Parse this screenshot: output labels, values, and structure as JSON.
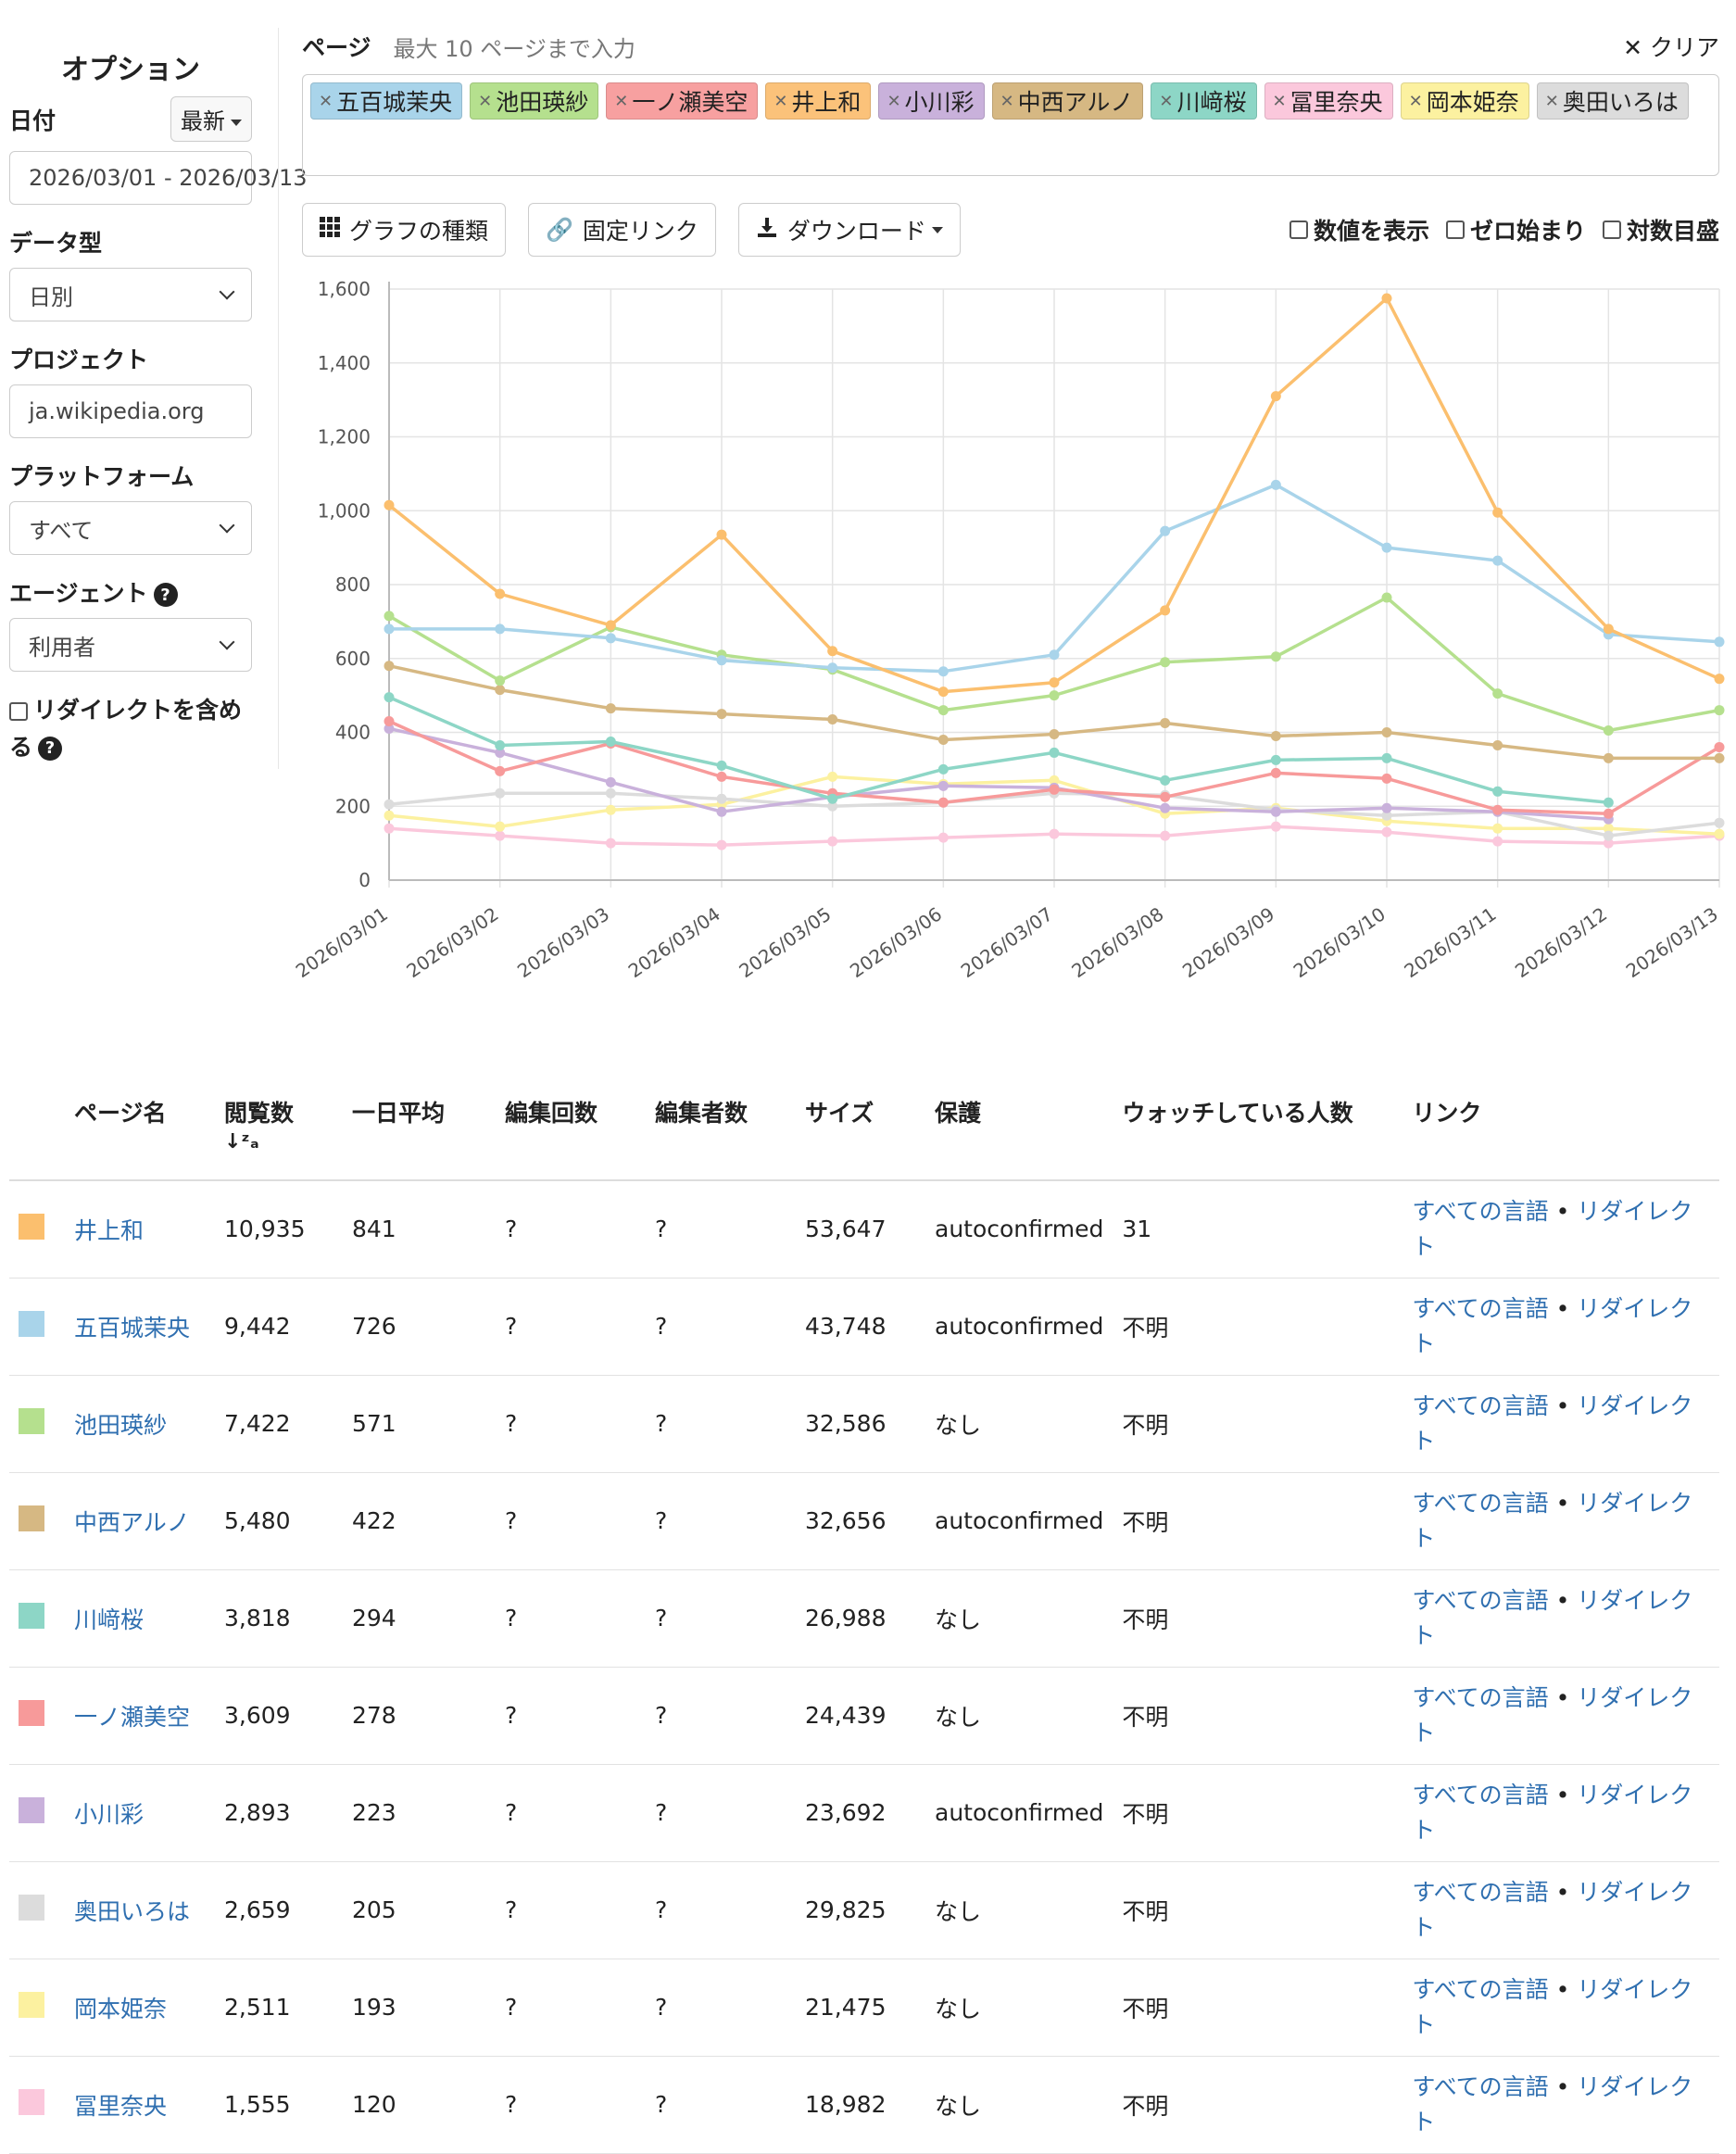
{
  "sidebar": {
    "title": "オプション",
    "date_label": "日付",
    "date_preset": "最新",
    "date_range": "2026/03/01 - 2026/03/13",
    "datatype_label": "データ型",
    "datatype_value": "日別",
    "project_label": "プロジェクト",
    "project_value": "ja.wikipedia.org",
    "platform_label": "プラットフォーム",
    "platform_value": "すべて",
    "agent_label": "エージェント",
    "agent_value": "利用者",
    "redirect_label": "リダイレクトを含める"
  },
  "pages": {
    "label": "ページ",
    "hint": "最大 10 ページまで入力",
    "clear": "クリア",
    "tags": [
      {
        "name": "五百城茉央",
        "color": "#a9d4ea"
      },
      {
        "name": "池田瑛紗",
        "color": "#b5e08e"
      },
      {
        "name": "一ノ瀬美空",
        "color": "#f7a0a0"
      },
      {
        "name": "井上和",
        "color": "#fbc27a"
      },
      {
        "name": "小川彩",
        "color": "#c9b1db"
      },
      {
        "name": "中西アルノ",
        "color": "#d6b883"
      },
      {
        "name": "川﨑桜",
        "color": "#8dd6c6"
      },
      {
        "name": "冨里奈央",
        "color": "#fbc8dc"
      },
      {
        "name": "岡本姫奈",
        "color": "#fcf1a0"
      },
      {
        "name": "奥田いろは",
        "color": "#dcdcdc"
      }
    ]
  },
  "toolbar": {
    "chart_type": "グラフの種類",
    "permalink": "固定リンク",
    "download": "ダウンロード",
    "show_values": "数値を表示",
    "begin_zero": "ゼロ始まり",
    "log_scale": "対数目盛"
  },
  "chart_data": {
    "type": "line",
    "x": [
      "2026/03/01",
      "2026/03/02",
      "2026/03/03",
      "2026/03/04",
      "2026/03/05",
      "2026/03/06",
      "2026/03/07",
      "2026/03/08",
      "2026/03/09",
      "2026/03/10",
      "2026/03/11",
      "2026/03/12",
      "2026/03/13"
    ],
    "ylim": [
      0,
      1600
    ],
    "yticks": [
      "0",
      "200",
      "400",
      "600",
      "800",
      "1,000",
      "1,200",
      "1,400",
      "1,600"
    ],
    "grid": true,
    "series": [
      {
        "name": "井上和",
        "color": "#fbbf6e",
        "values": [
          1015,
          775,
          690,
          935,
          620,
          510,
          535,
          730,
          1310,
          1575,
          995,
          680,
          545
        ]
      },
      {
        "name": "五百城茉央",
        "color": "#a9d4ea",
        "values": [
          680,
          680,
          655,
          595,
          575,
          565,
          610,
          945,
          1070,
          900,
          865,
          665,
          645
        ]
      },
      {
        "name": "池田瑛紗",
        "color": "#b5e08e",
        "values": [
          715,
          540,
          685,
          610,
          570,
          460,
          500,
          590,
          605,
          765,
          505,
          405,
          460
        ]
      },
      {
        "name": "中西アルノ",
        "color": "#d6b883",
        "values": [
          580,
          515,
          465,
          450,
          435,
          380,
          395,
          425,
          390,
          400,
          365,
          330,
          330
        ]
      },
      {
        "name": "川﨑桜",
        "color": "#8dd6c6",
        "values": [
          495,
          365,
          375,
          310,
          220,
          300,
          345,
          270,
          325,
          330,
          240,
          210,
          null
        ]
      },
      {
        "name": "一ノ瀬美空",
        "color": "#f79a9a",
        "values": [
          430,
          295,
          370,
          280,
          235,
          210,
          245,
          225,
          290,
          275,
          190,
          180,
          360
        ]
      },
      {
        "name": "小川彩",
        "color": "#c9b1db",
        "values": [
          410,
          345,
          265,
          185,
          225,
          255,
          250,
          195,
          185,
          195,
          185,
          165,
          null
        ]
      },
      {
        "name": "奥田いろは",
        "color": "#dcdcdc",
        "values": [
          205,
          235,
          235,
          220,
          200,
          210,
          235,
          230,
          190,
          175,
          185,
          120,
          155
        ]
      },
      {
        "name": "岡本姫奈",
        "color": "#fcf1a0",
        "values": [
          175,
          145,
          190,
          205,
          280,
          260,
          270,
          180,
          195,
          160,
          140,
          140,
          125
        ]
      },
      {
        "name": "冨里奈央",
        "color": "#fbc8dc",
        "values": [
          140,
          120,
          100,
          95,
          105,
          115,
          125,
          120,
          145,
          130,
          105,
          100,
          120
        ]
      }
    ]
  },
  "table": {
    "headers": [
      "ページ名",
      "閲覧数",
      "一日平均",
      "編集回数",
      "編集者数",
      "サイズ",
      "保護",
      "ウォッチしている人数",
      "リンク"
    ],
    "sort_icon": "↓z/a",
    "link_all": "すべての言語",
    "link_sep": "•",
    "link_redirect": "リダイレクト",
    "rows": [
      {
        "color": "#fbbf6e",
        "name": "井上和",
        "views": "10,935",
        "avg": "841",
        "edits": "?",
        "editors": "?",
        "size": "53,647",
        "protection": "autoconfirmed",
        "watchers": "31"
      },
      {
        "color": "#a9d4ea",
        "name": "五百城茉央",
        "views": "9,442",
        "avg": "726",
        "edits": "?",
        "editors": "?",
        "size": "43,748",
        "protection": "autoconfirmed",
        "watchers": "不明"
      },
      {
        "color": "#b5e08e",
        "name": "池田瑛紗",
        "views": "7,422",
        "avg": "571",
        "edits": "?",
        "editors": "?",
        "size": "32,586",
        "protection": "なし",
        "watchers": "不明"
      },
      {
        "color": "#d6b883",
        "name": "中西アルノ",
        "views": "5,480",
        "avg": "422",
        "edits": "?",
        "editors": "?",
        "size": "32,656",
        "protection": "autoconfirmed",
        "watchers": "不明"
      },
      {
        "color": "#8dd6c6",
        "name": "川﨑桜",
        "views": "3,818",
        "avg": "294",
        "edits": "?",
        "editors": "?",
        "size": "26,988",
        "protection": "なし",
        "watchers": "不明"
      },
      {
        "color": "#f79a9a",
        "name": "一ノ瀬美空",
        "views": "3,609",
        "avg": "278",
        "edits": "?",
        "editors": "?",
        "size": "24,439",
        "protection": "なし",
        "watchers": "不明"
      },
      {
        "color": "#c9b1db",
        "name": "小川彩",
        "views": "2,893",
        "avg": "223",
        "edits": "?",
        "editors": "?",
        "size": "23,692",
        "protection": "autoconfirmed",
        "watchers": "不明"
      },
      {
        "color": "#dcdcdc",
        "name": "奥田いろは",
        "views": "2,659",
        "avg": "205",
        "edits": "?",
        "editors": "?",
        "size": "29,825",
        "protection": "なし",
        "watchers": "不明"
      },
      {
        "color": "#fcf1a0",
        "name": "岡本姫奈",
        "views": "2,511",
        "avg": "193",
        "edits": "?",
        "editors": "?",
        "size": "21,475",
        "protection": "なし",
        "watchers": "不明"
      },
      {
        "color": "#fbc8dc",
        "name": "冨里奈央",
        "views": "1,555",
        "avg": "120",
        "edits": "?",
        "editors": "?",
        "size": "18,982",
        "protection": "なし",
        "watchers": "不明"
      }
    ]
  }
}
